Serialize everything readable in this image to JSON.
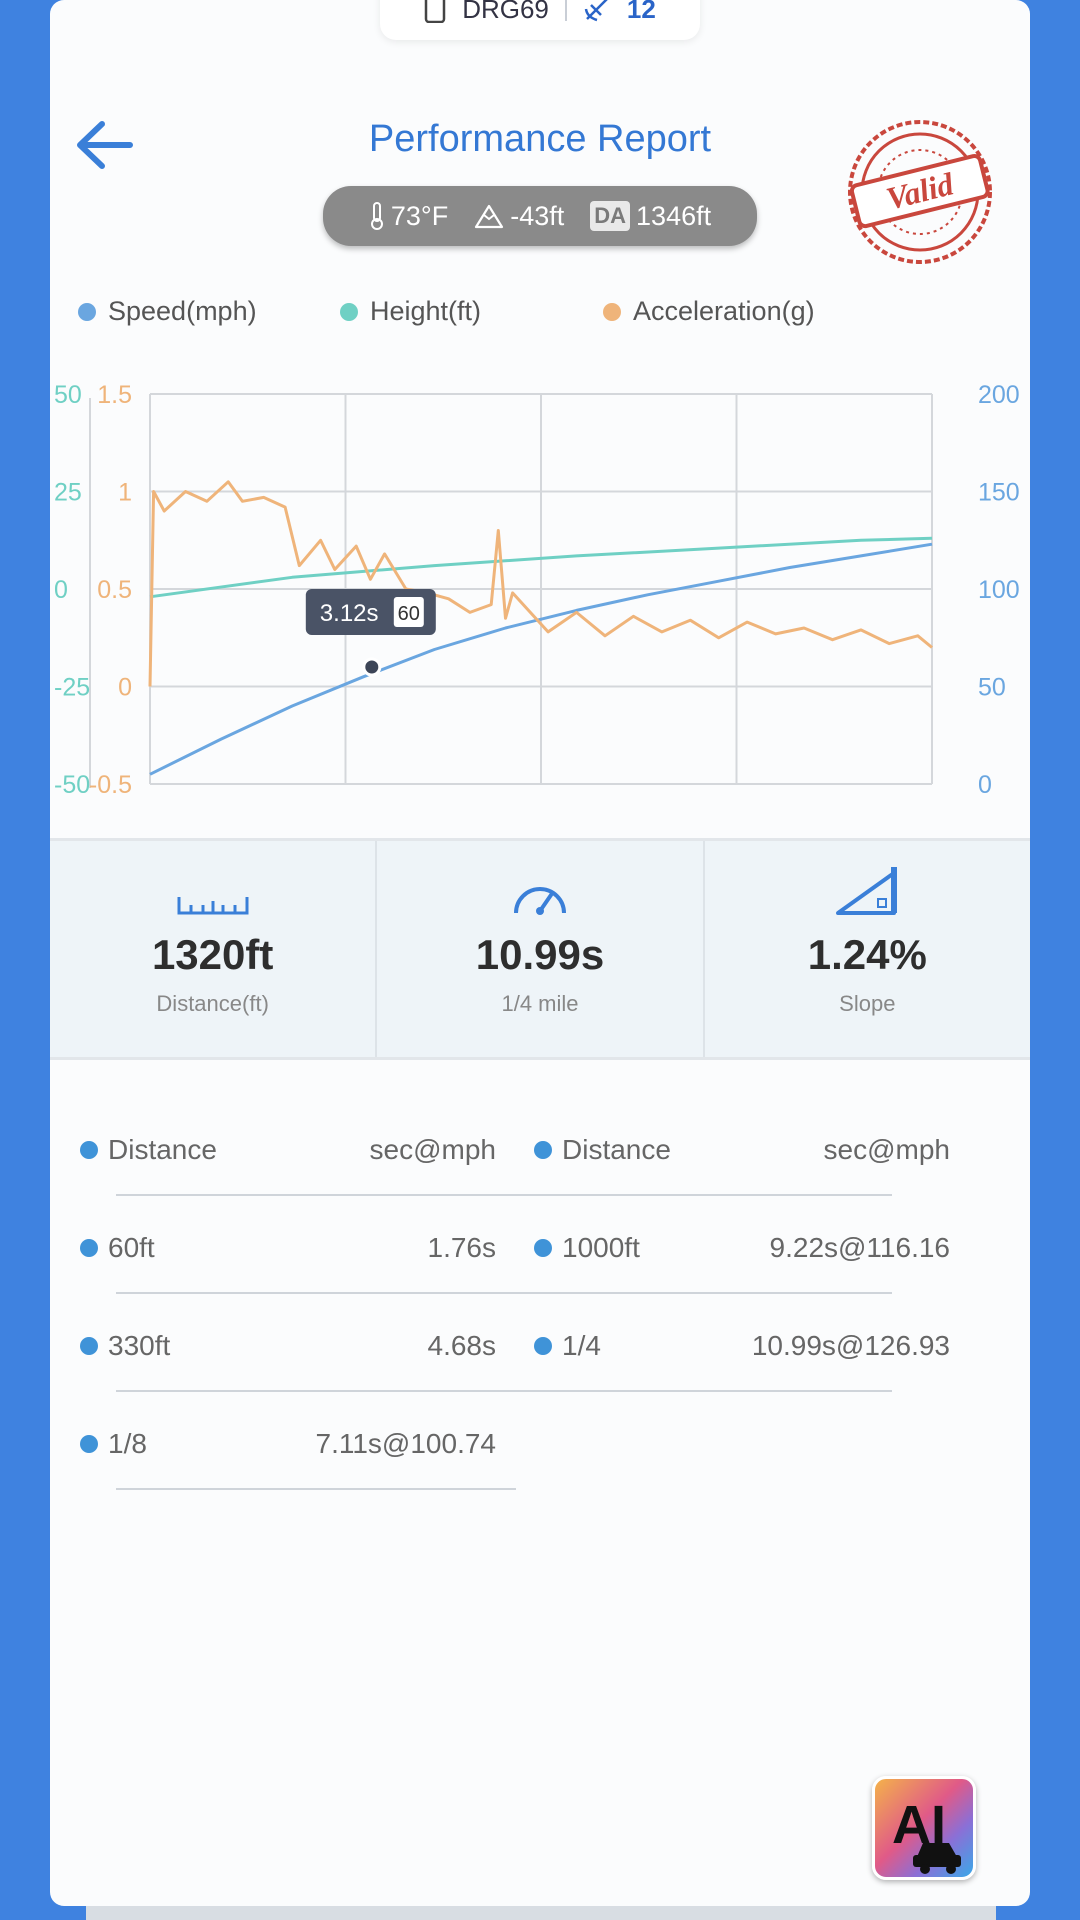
{
  "device": {
    "name": "DRG69",
    "count": "12"
  },
  "header": {
    "title": "Performance Report",
    "stamp_text": "Valid"
  },
  "environment": {
    "temperature": "73°F",
    "altitude": "-43ft",
    "da_label": "DA",
    "density_altitude": "1346ft"
  },
  "legend": [
    {
      "label": "Speed(mph)",
      "color": "#6aa6e0"
    },
    {
      "label": "Height(ft)",
      "color": "#6fd0c4"
    },
    {
      "label": "Acceleration(g)",
      "color": "#efb47a"
    }
  ],
  "chart_data": {
    "type": "line",
    "x_gridlines": 4,
    "axes": {
      "height_left": {
        "ticks": [
          "50",
          "25",
          "0",
          "-25",
          "-50"
        ],
        "range": [
          -50,
          50
        ],
        "color": "#6fd0c4"
      },
      "accel_left": {
        "ticks": [
          "1.5",
          "1",
          "0.5",
          "0",
          "-0.5"
        ],
        "range": [
          -0.5,
          1.5
        ],
        "color": "#efb47a"
      },
      "speed_right": {
        "ticks": [
          "200",
          "150",
          "100",
          "50",
          "0"
        ],
        "range": [
          0,
          200
        ],
        "color": "#6aa6e0"
      }
    },
    "series": [
      {
        "name": "Speed(mph)",
        "axis": "speed_right",
        "x": [
          0,
          1,
          2,
          3,
          4,
          5,
          6,
          7,
          8,
          9,
          10,
          11
        ],
        "y": [
          5,
          23,
          40,
          55,
          69,
          80,
          89,
          97,
          104,
          111,
          117,
          123
        ]
      },
      {
        "name": "Height(ft)",
        "axis": "height_left",
        "x": [
          0,
          2,
          4,
          6,
          8,
          10,
          11
        ],
        "y": [
          -2,
          3,
          6,
          8.5,
          10.5,
          12.5,
          13
        ]
      },
      {
        "name": "Acceleration(g)",
        "axis": "accel_left",
        "x": [
          0,
          0.05,
          0.2,
          0.5,
          0.8,
          1.1,
          1.3,
          1.6,
          1.9,
          2.1,
          2.4,
          2.6,
          2.9,
          3.1,
          3.3,
          3.6,
          3.9,
          4.2,
          4.5,
          4.8,
          4.9,
          5.0,
          5.1,
          5.3,
          5.6,
          6.0,
          6.4,
          6.8,
          7.2,
          7.6,
          8.0,
          8.4,
          8.8,
          9.2,
          9.6,
          10.0,
          10.4,
          10.8,
          11.0
        ],
        "y": [
          0,
          1.0,
          0.9,
          1.0,
          0.95,
          1.05,
          0.95,
          0.97,
          0.92,
          0.62,
          0.75,
          0.6,
          0.72,
          0.55,
          0.68,
          0.5,
          0.48,
          0.45,
          0.38,
          0.42,
          0.8,
          0.35,
          0.48,
          0.4,
          0.28,
          0.38,
          0.26,
          0.36,
          0.28,
          0.34,
          0.25,
          0.33,
          0.27,
          0.3,
          0.24,
          0.29,
          0.22,
          0.26,
          0.2
        ]
      }
    ],
    "tooltip": {
      "time": "3.12s",
      "value": "60"
    }
  },
  "stats": [
    {
      "icon": "ruler-icon",
      "value": "1320ft",
      "label": "Distance(ft)"
    },
    {
      "icon": "speedometer-icon",
      "value": "10.99s",
      "label": "1/4 mile"
    },
    {
      "icon": "slope-icon",
      "value": "1.24%",
      "label": "Slope"
    }
  ],
  "splits": {
    "header": {
      "left": "Distance",
      "right": "sec@mph"
    },
    "left": [
      {
        "distance": "60ft",
        "time": "1.76s"
      },
      {
        "distance": "330ft",
        "time": "4.68s"
      },
      {
        "distance": "1/8",
        "time": "7.11s@100.74"
      }
    ],
    "right": [
      {
        "distance": "1000ft",
        "time": "9.22s@116.16"
      },
      {
        "distance": "1/4",
        "time": "10.99s@126.93"
      }
    ]
  },
  "ai_badge": {
    "label": "AI"
  }
}
